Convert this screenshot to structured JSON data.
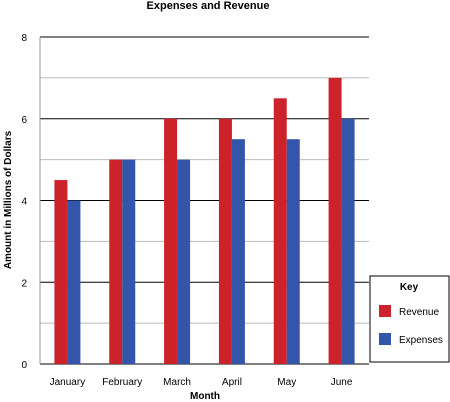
{
  "chart_data": {
    "type": "bar",
    "title": "Expenses and Revenue",
    "xlabel": "Month",
    "ylabel": "Amount in Millions of Dollars",
    "categories": [
      "January",
      "February",
      "March",
      "April",
      "May",
      "June"
    ],
    "series": [
      {
        "name": "Revenue",
        "color": "#cc2229",
        "values": [
          4.5,
          5,
          6,
          6,
          6.5,
          7
        ]
      },
      {
        "name": "Expenses",
        "color": "#3355aa",
        "values": [
          4,
          5,
          5,
          5.5,
          5.5,
          6
        ]
      }
    ],
    "ylim": [
      0,
      8
    ],
    "yticks": [
      "0",
      "2",
      "4",
      "6",
      "8"
    ],
    "grid": true,
    "legend": {
      "title": "Key",
      "placement": "right"
    }
  }
}
